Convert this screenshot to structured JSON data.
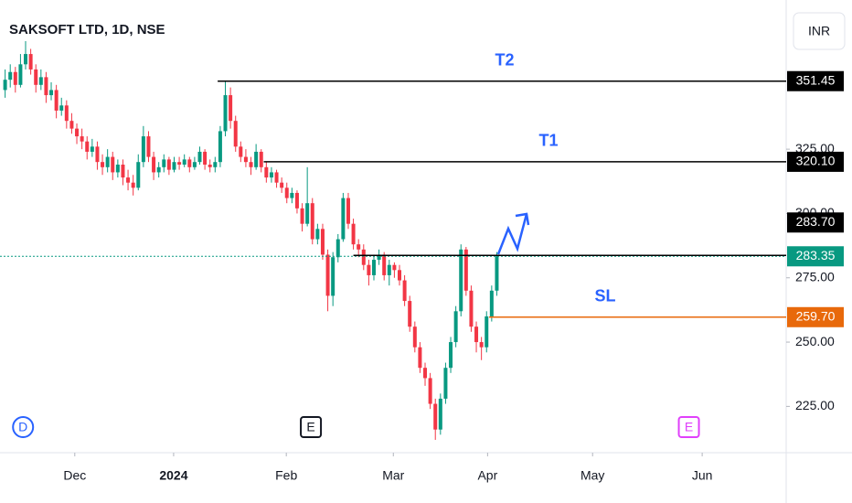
{
  "chart_data": {
    "type": "candlestick",
    "title": "SAKSOFT LTD, 1D, NSE",
    "currency": "INR",
    "up_color": "#089981",
    "down_color": "#f23645",
    "ylim": [
      207,
      383
    ],
    "yticks": [
      {
        "value": 225,
        "label": "225.00"
      },
      {
        "value": 250,
        "label": "250.00"
      },
      {
        "value": 275,
        "label": "275.00"
      },
      {
        "value": 300,
        "label": "300.00"
      },
      {
        "value": 325,
        "label": "325.00"
      }
    ],
    "xlim": [
      -1,
      152.5
    ],
    "xticks": [
      {
        "value": 13.6,
        "label": "Dec"
      },
      {
        "value": 32.9,
        "label": "2024"
      },
      {
        "value": 54.9,
        "label": "Feb"
      },
      {
        "value": 75.8,
        "label": "Mar"
      },
      {
        "value": 94.2,
        "label": "Apr"
      },
      {
        "value": 114.7,
        "label": "May"
      },
      {
        "value": 136.1,
        "label": "Jun"
      }
    ],
    "ohlc": [
      [
        348,
        356,
        345,
        352
      ],
      [
        352,
        358,
        349,
        355
      ],
      [
        355,
        357,
        347,
        350
      ],
      [
        350,
        362,
        349,
        358
      ],
      [
        358,
        367,
        356,
        362
      ],
      [
        362,
        364,
        354,
        356
      ],
      [
        356,
        358,
        347,
        350
      ],
      [
        350,
        356,
        348,
        353
      ],
      [
        353,
        355,
        343,
        346
      ],
      [
        346,
        351,
        344,
        348
      ],
      [
        348,
        350,
        337,
        340
      ],
      [
        340,
        345,
        338,
        342
      ],
      [
        342,
        344,
        333,
        336
      ],
      [
        336,
        339,
        331,
        333
      ],
      [
        333,
        335,
        327,
        330
      ],
      [
        330,
        333,
        325,
        328
      ],
      [
        328,
        330,
        321,
        324
      ],
      [
        324,
        329,
        322,
        326
      ],
      [
        326,
        328,
        317,
        320
      ],
      [
        320,
        323,
        315,
        318
      ],
      [
        318,
        325,
        316,
        322
      ],
      [
        322,
        324,
        313,
        316
      ],
      [
        316,
        321,
        314,
        319
      ],
      [
        319,
        321,
        311,
        314
      ],
      [
        314,
        317,
        309,
        312
      ],
      [
        312,
        315,
        307,
        310
      ],
      [
        310,
        323,
        309,
        320
      ],
      [
        320,
        334,
        318,
        330
      ],
      [
        330,
        332,
        320,
        322
      ],
      [
        322,
        324,
        313,
        316
      ],
      [
        316,
        320,
        314,
        318
      ],
      [
        318,
        323,
        316,
        321
      ],
      [
        321,
        322,
        315,
        317
      ],
      [
        317,
        322,
        316,
        320
      ],
      [
        320,
        322,
        317,
        319
      ],
      [
        319,
        323,
        318,
        321
      ],
      [
        321,
        322,
        316,
        318
      ],
      [
        318,
        322,
        317,
        320
      ],
      [
        320,
        326,
        319,
        324
      ],
      [
        324,
        325,
        317,
        319
      ],
      [
        319,
        321,
        316,
        318
      ],
      [
        318,
        322,
        316,
        320
      ],
      [
        320,
        334,
        318,
        332
      ],
      [
        332,
        351.45,
        330,
        346
      ],
      [
        346,
        349,
        333,
        336
      ],
      [
        336,
        338,
        324,
        326
      ],
      [
        326,
        328,
        320,
        322
      ],
      [
        322,
        325,
        318,
        320
      ],
      [
        320,
        322,
        315,
        318
      ],
      [
        318,
        327,
        317,
        324
      ],
      [
        324,
        325,
        316,
        318
      ],
      [
        318,
        320,
        312,
        314
      ],
      [
        314,
        318,
        312,
        316
      ],
      [
        316,
        317,
        310,
        312
      ],
      [
        312,
        314,
        308,
        310
      ],
      [
        310,
        312,
        304,
        306
      ],
      [
        306,
        310,
        304,
        308
      ],
      [
        308,
        309,
        300,
        302
      ],
      [
        302,
        304,
        293,
        296
      ],
      [
        296,
        318,
        295,
        304
      ],
      [
        304,
        306,
        288,
        290
      ],
      [
        290,
        296,
        288,
        294
      ],
      [
        294,
        296,
        282,
        284
      ],
      [
        284,
        286,
        262,
        268
      ],
      [
        268,
        285,
        264,
        283
      ],
      [
        283,
        292,
        281,
        290
      ],
      [
        290,
        308,
        289,
        306
      ],
      [
        306,
        308,
        294,
        296
      ],
      [
        296,
        298,
        286,
        288
      ],
      [
        288,
        290,
        283,
        286
      ],
      [
        286,
        288,
        278,
        280
      ],
      [
        280,
        282,
        272,
        276
      ],
      [
        276,
        284,
        274,
        282
      ],
      [
        282,
        286,
        280,
        284
      ],
      [
        284,
        285,
        274,
        276
      ],
      [
        276,
        282,
        272,
        280
      ],
      [
        280,
        281,
        275,
        278
      ],
      [
        278,
        280,
        272,
        274
      ],
      [
        274,
        276,
        264,
        266
      ],
      [
        266,
        268,
        254,
        256
      ],
      [
        256,
        258,
        246,
        248
      ],
      [
        248,
        250,
        238,
        240
      ],
      [
        240,
        242,
        233,
        236
      ],
      [
        236,
        238,
        224,
        226
      ],
      [
        226,
        228,
        212,
        216
      ],
      [
        216,
        230,
        214,
        228
      ],
      [
        228,
        242,
        226,
        240
      ],
      [
        240,
        252,
        238,
        250
      ],
      [
        250,
        264,
        248,
        262
      ],
      [
        262,
        288,
        260,
        286
      ],
      [
        286,
        287,
        268,
        270
      ],
      [
        270,
        272,
        254,
        256
      ],
      [
        256,
        258,
        246,
        250
      ],
      [
        250,
        252,
        243,
        248
      ],
      [
        248,
        262,
        246,
        260
      ],
      [
        260,
        272,
        258,
        270
      ],
      [
        270,
        285,
        268,
        283.35
      ]
    ],
    "levels": [
      {
        "value": 351.45,
        "label": "351.45",
        "name": "T2",
        "from": 41.5,
        "color": "#000000"
      },
      {
        "value": 320.1,
        "label": "320.10",
        "name": "T1",
        "from": 50.5,
        "color": "#000000"
      },
      {
        "value": 283.35,
        "label": "283.35",
        "from": -1,
        "color": "#089981",
        "dotted": true
      },
      {
        "value": 283.7,
        "label": "283.70",
        "from": 68,
        "color": "#000000"
      },
      {
        "value": 259.7,
        "label": "259.70",
        "name": "SL",
        "from": 94.5,
        "color": "#e8690b"
      }
    ],
    "events": [
      {
        "label": "D",
        "x": 3.5,
        "color": "#2962ff",
        "shape": "circle"
      },
      {
        "label": "E",
        "x": 59.7,
        "color": "#131722",
        "shape": "square"
      },
      {
        "label": "E",
        "x": 133.5,
        "color": "#e040fb",
        "shape": "square"
      }
    ]
  }
}
